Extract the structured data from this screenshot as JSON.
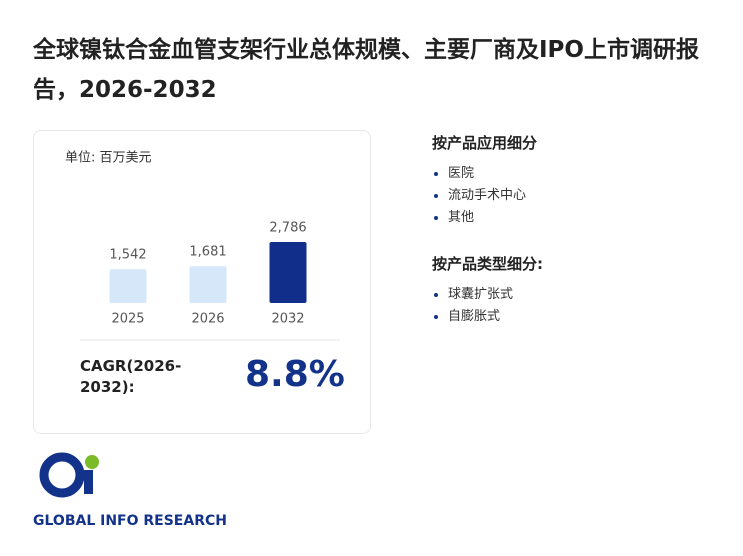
{
  "title": "全球镍钛合金血管支架行业总体规模、主要厂商及IPO上市调研报告，2026-2032",
  "chart_data": {
    "type": "bar",
    "subtitle": "单位: 百万美元",
    "categories": [
      "2025",
      "2026",
      "2032"
    ],
    "values": [
      1542,
      1681,
      2786
    ],
    "value_labels": [
      "1,542",
      "1,681",
      "2,786"
    ],
    "colors": [
      "#d5e7f8",
      "#d5e7f8",
      "#112f8a"
    ]
  },
  "cagr": {
    "label": "CAGR(2026-2032):",
    "value": "8.8%"
  },
  "segments": [
    {
      "title": "按产品应用细分",
      "items": [
        "医院",
        "流动手术中心",
        "其他"
      ]
    },
    {
      "title": "按产品类型细分:",
      "items": [
        "球囊扩张式",
        "自膨胀式"
      ]
    }
  ],
  "logo": "GLOBAL INFO RESEARCH"
}
